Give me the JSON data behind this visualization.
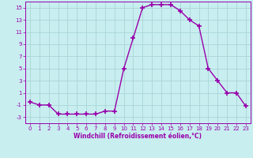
{
  "x": [
    0,
    1,
    2,
    3,
    4,
    5,
    6,
    7,
    8,
    9,
    10,
    11,
    12,
    13,
    14,
    15,
    16,
    17,
    18,
    19,
    20,
    21,
    22,
    23
  ],
  "y": [
    -0.5,
    -1,
    -1,
    -2.5,
    -2.5,
    -2.5,
    -2.5,
    -2.5,
    -2,
    -2,
    5,
    10,
    15,
    15.5,
    15.5,
    15.5,
    14.5,
    13,
    12,
    5,
    3,
    1,
    1,
    -1.2
  ],
  "line_color": "#9900aa",
  "marker": "+",
  "marker_size": 4,
  "marker_lw": 1.2,
  "line_width": 1.0,
  "bg_color": "#c8eef0",
  "grid_color": "#aad4d8",
  "xlabel": "Windchill (Refroidissement éolien,°C)",
  "xlabel_color": "#9900aa",
  "ylim": [
    -4,
    16
  ],
  "xlim": [
    -0.5,
    23.5
  ],
  "yticks": [
    -3,
    -1,
    1,
    3,
    5,
    7,
    9,
    11,
    13,
    15
  ],
  "xticks": [
    0,
    1,
    2,
    3,
    4,
    5,
    6,
    7,
    8,
    9,
    10,
    11,
    12,
    13,
    14,
    15,
    16,
    17,
    18,
    19,
    20,
    21,
    22,
    23
  ],
  "tick_fontsize": 5.0,
  "xlabel_fontsize": 5.5
}
